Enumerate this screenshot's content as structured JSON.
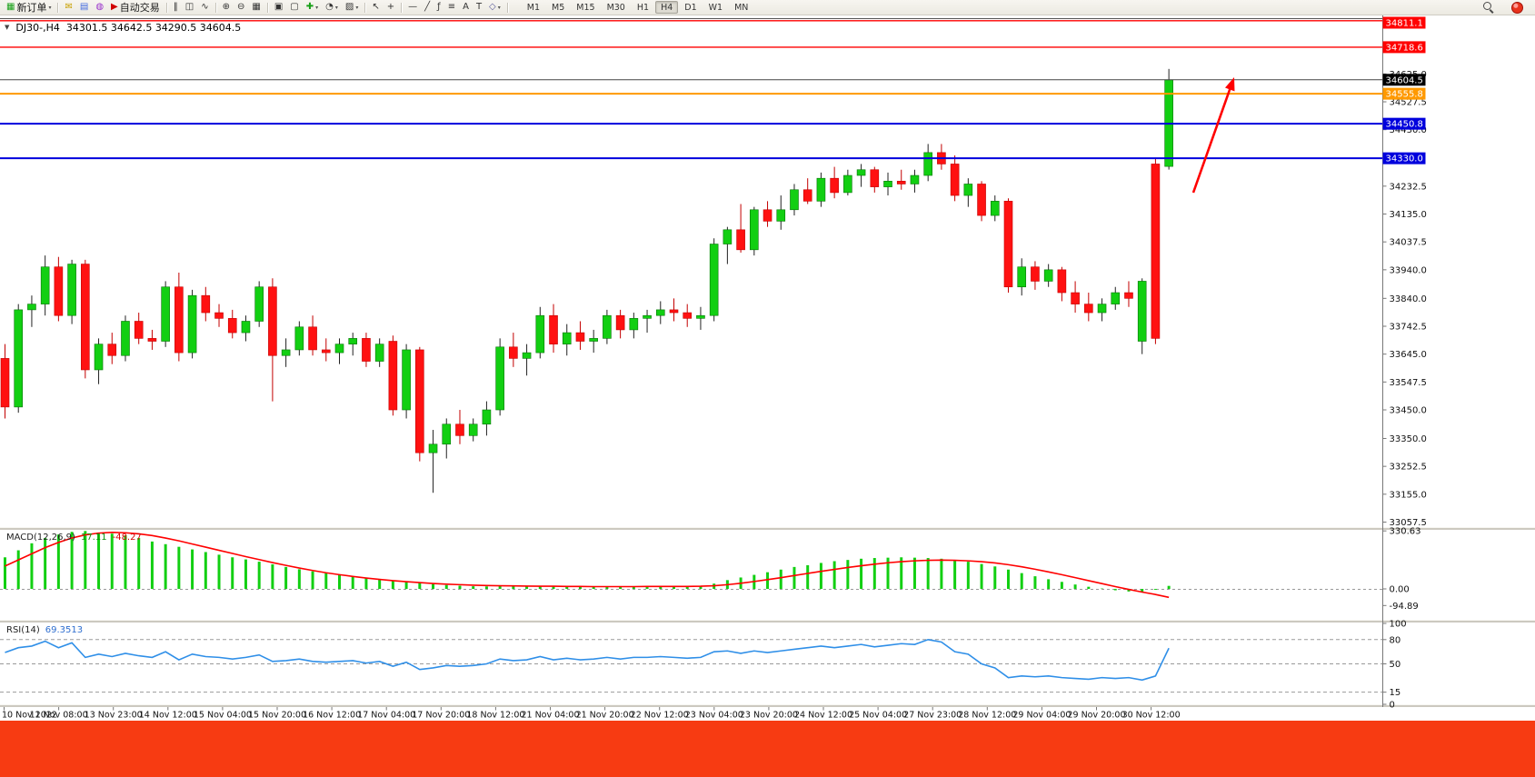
{
  "window": {
    "app": "MetaTrader terminal"
  },
  "toolbar": {
    "items": [
      {
        "type": "btn",
        "name": "new-order-button",
        "icon": "chart-plus-icon",
        "glyph": "▦",
        "color": "#18a018",
        "label": "新订单",
        "caret": true
      },
      {
        "type": "sep"
      },
      {
        "type": "btn",
        "name": "mql-editor-button",
        "icon": "envelope-icon",
        "glyph": "✉",
        "color": "#c8a000"
      },
      {
        "type": "btn",
        "name": "market-watch-button",
        "icon": "list-panel-icon",
        "glyph": "▤",
        "color": "#4169e1"
      },
      {
        "type": "btn",
        "name": "terminal-button",
        "icon": "terminal-icon",
        "glyph": "◍",
        "color": "#9932cc"
      },
      {
        "type": "btn",
        "name": "autotrading-button",
        "icon": "play-icon",
        "glyph": "▶",
        "color": "#d00000",
        "label": "自动交易"
      },
      {
        "type": "sep"
      },
      {
        "type": "btn",
        "name": "bars-mode-button",
        "icon": "bars-chart-icon",
        "glyph": "‖",
        "color": "#333333"
      },
      {
        "type": "btn",
        "name": "candles-mode-button",
        "icon": "candlestick-icon",
        "glyph": "◫",
        "color": "#333333"
      },
      {
        "type": "btn",
        "name": "line-mode-button",
        "icon": "line-chart-icon",
        "glyph": "∿",
        "color": "#333333"
      },
      {
        "type": "sep"
      },
      {
        "type": "btn",
        "name": "zoom-in-button",
        "icon": "zoom-in-icon",
        "glyph": "⊕",
        "color": "#333333"
      },
      {
        "type": "btn",
        "name": "zoom-out-button",
        "icon": "zoom-out-icon",
        "glyph": "⊖",
        "color": "#333333"
      },
      {
        "type": "btn",
        "name": "tile-windows-button",
        "icon": "tile-windows-icon",
        "glyph": "▦",
        "color": "#333333"
      },
      {
        "type": "sep"
      },
      {
        "type": "btn",
        "name": "auto-arrange-button",
        "icon": "arrange-icon",
        "glyph": "▣",
        "color": "#333333"
      },
      {
        "type": "btn",
        "name": "cascade-button",
        "icon": "cascade-icon",
        "glyph": "▢",
        "color": "#333333"
      },
      {
        "type": "btn",
        "name": "indicators-button",
        "icon": "plus-icon",
        "glyph": "✚",
        "color": "#18a018",
        "caret": true
      },
      {
        "type": "btn",
        "name": "periods-button",
        "icon": "clock-icon",
        "glyph": "◔",
        "color": "#333333",
        "caret": true
      },
      {
        "type": "btn",
        "name": "templates-button",
        "icon": "template-icon",
        "glyph": "▨",
        "color": "#333333",
        "caret": true
      },
      {
        "type": "sep"
      },
      {
        "type": "btn",
        "name": "cursor-button",
        "icon": "cursor-arrow-icon",
        "glyph": "↖",
        "color": "#333333"
      },
      {
        "type": "btn",
        "name": "crosshair-button",
        "icon": "crosshair-icon",
        "glyph": "+",
        "color": "#333333"
      },
      {
        "type": "sep"
      },
      {
        "type": "btn",
        "name": "horizontal-line-button",
        "icon": "hline-icon",
        "glyph": "—",
        "color": "#333333"
      },
      {
        "type": "btn",
        "name": "trendline-button",
        "icon": "trendline-icon",
        "glyph": "╱",
        "color": "#333333"
      },
      {
        "type": "btn",
        "name": "fibonacci-button",
        "icon": "fibonacci-icon",
        "glyph": "ƒ",
        "color": "#333333"
      },
      {
        "type": "btn",
        "name": "channel-button",
        "icon": "channel-icon",
        "glyph": "≡",
        "color": "#333333"
      },
      {
        "type": "btn",
        "name": "text-button",
        "icon": "text-a-icon",
        "glyph": "A",
        "color": "#333333"
      },
      {
        "type": "btn",
        "name": "label-button",
        "icon": "label-t-icon",
        "glyph": "T",
        "color": "#333333"
      },
      {
        "type": "btn",
        "name": "arrows-button",
        "icon": "shapes-icon",
        "glyph": "◇",
        "color": "#5a5a9a",
        "caret": true
      },
      {
        "type": "sep"
      }
    ],
    "timeframes": {
      "items": [
        "M1",
        "M5",
        "M15",
        "M30",
        "H1",
        "H4",
        "D1",
        "W1",
        "MN"
      ],
      "active": "H4"
    }
  },
  "chart": {
    "title_symbol": "DJ30-,H4",
    "title_ohlc": "34301.5 34642.5 34290.5 34604.5"
  },
  "chart_data": {
    "type": "candlestick",
    "symbol": "DJ30-",
    "period": "H4",
    "ylim": [
      33040,
      34820
    ],
    "candles": [
      [
        33630,
        33680,
        33420,
        33460
      ],
      [
        33460,
        33820,
        33440,
        33800
      ],
      [
        33800,
        33850,
        33740,
        33820
      ],
      [
        33820,
        33990,
        33780,
        33950
      ],
      [
        33950,
        33985,
        33760,
        33780
      ],
      [
        33780,
        33975,
        33750,
        33960
      ],
      [
        33960,
        33975,
        33560,
        33590
      ],
      [
        33590,
        33700,
        33540,
        33680
      ],
      [
        33680,
        33720,
        33610,
        33640
      ],
      [
        33640,
        33780,
        33620,
        33760
      ],
      [
        33760,
        33790,
        33680,
        33700
      ],
      [
        33700,
        33730,
        33660,
        33690
      ],
      [
        33690,
        33900,
        33670,
        33880
      ],
      [
        33880,
        33930,
        33620,
        33650
      ],
      [
        33650,
        33870,
        33630,
        33850
      ],
      [
        33850,
        33880,
        33760,
        33790
      ],
      [
        33790,
        33820,
        33740,
        33770
      ],
      [
        33770,
        33800,
        33700,
        33720
      ],
      [
        33720,
        33780,
        33690,
        33760
      ],
      [
        33760,
        33900,
        33740,
        33880
      ],
      [
        33880,
        33910,
        33480,
        33640
      ],
      [
        33640,
        33700,
        33600,
        33660
      ],
      [
        33660,
        33760,
        33640,
        33740
      ],
      [
        33740,
        33780,
        33640,
        33660
      ],
      [
        33660,
        33700,
        33620,
        33650
      ],
      [
        33650,
        33700,
        33610,
        33680
      ],
      [
        33680,
        33720,
        33640,
        33700
      ],
      [
        33700,
        33720,
        33600,
        33620
      ],
      [
        33620,
        33700,
        33600,
        33680
      ],
      [
        33690,
        33710,
        33430,
        33450
      ],
      [
        33450,
        33680,
        33420,
        33660
      ],
      [
        33660,
        33670,
        33270,
        33300
      ],
      [
        33300,
        33380,
        33160,
        33330
      ],
      [
        33330,
        33420,
        33280,
        33400
      ],
      [
        33400,
        33450,
        33330,
        33360
      ],
      [
        33360,
        33420,
        33340,
        33400
      ],
      [
        33400,
        33480,
        33360,
        33450
      ],
      [
        33450,
        33700,
        33430,
        33670
      ],
      [
        33670,
        33720,
        33600,
        33630
      ],
      [
        33630,
        33680,
        33570,
        33650
      ],
      [
        33650,
        33810,
        33630,
        33780
      ],
      [
        33780,
        33820,
        33650,
        33680
      ],
      [
        33680,
        33750,
        33640,
        33720
      ],
      [
        33720,
        33760,
        33660,
        33690
      ],
      [
        33690,
        33730,
        33650,
        33700
      ],
      [
        33700,
        33800,
        33680,
        33780
      ],
      [
        33780,
        33800,
        33700,
        33730
      ],
      [
        33730,
        33790,
        33700,
        33770
      ],
      [
        33770,
        33800,
        33720,
        33780
      ],
      [
        33780,
        33830,
        33750,
        33800
      ],
      [
        33800,
        33840,
        33760,
        33790
      ],
      [
        33790,
        33820,
        33740,
        33770
      ],
      [
        33770,
        33810,
        33730,
        33780
      ],
      [
        33780,
        34050,
        33760,
        34030
      ],
      [
        34030,
        34090,
        33960,
        34080
      ],
      [
        34080,
        34170,
        34000,
        34010
      ],
      [
        34010,
        34160,
        33990,
        34150
      ],
      [
        34150,
        34180,
        34090,
        34110
      ],
      [
        34110,
        34200,
        34080,
        34150
      ],
      [
        34150,
        34240,
        34130,
        34220
      ],
      [
        34220,
        34260,
        34170,
        34180
      ],
      [
        34180,
        34280,
        34160,
        34260
      ],
      [
        34260,
        34300,
        34190,
        34210
      ],
      [
        34210,
        34290,
        34200,
        34270
      ],
      [
        34270,
        34310,
        34230,
        34290
      ],
      [
        34290,
        34300,
        34210,
        34230
      ],
      [
        34230,
        34280,
        34200,
        34250
      ],
      [
        34250,
        34290,
        34220,
        34240
      ],
      [
        34240,
        34290,
        34210,
        34270
      ],
      [
        34270,
        34380,
        34250,
        34350
      ],
      [
        34350,
        34380,
        34290,
        34310
      ],
      [
        34310,
        34340,
        34180,
        34200
      ],
      [
        34200,
        34260,
        34160,
        34240
      ],
      [
        34240,
        34250,
        34110,
        34130
      ],
      [
        34130,
        34200,
        34110,
        34180
      ],
      [
        34180,
        34190,
        33860,
        33880
      ],
      [
        33880,
        33980,
        33850,
        33950
      ],
      [
        33950,
        33970,
        33870,
        33900
      ],
      [
        33900,
        33960,
        33880,
        33940
      ],
      [
        33940,
        33950,
        33830,
        33860
      ],
      [
        33860,
        33900,
        33790,
        33820
      ],
      [
        33820,
        33860,
        33760,
        33790
      ],
      [
        33790,
        33840,
        33760,
        33820
      ],
      [
        33820,
        33880,
        33800,
        33860
      ],
      [
        33860,
        33900,
        33810,
        33840
      ],
      [
        33690,
        33910,
        33645,
        33900
      ],
      [
        34310,
        34330,
        33680,
        33700
      ],
      [
        34301.5,
        34642.5,
        34290.5,
        34604.5
      ]
    ],
    "hlines": [
      {
        "label": "34811.1",
        "value": 34811.1,
        "color": "#ff0000",
        "width": 1.4
      },
      {
        "label": "34718.6",
        "value": 34718.6,
        "color": "#ff0000",
        "width": 1.4
      },
      {
        "label": "34555.8",
        "value": 34555.8,
        "color": "#ff9900",
        "width": 2
      },
      {
        "label": "34450.8",
        "value": 34450.8,
        "color": "#0000dd",
        "width": 2
      },
      {
        "label": "34330.0",
        "value": 34330.0,
        "color": "#0000dd",
        "width": 2
      }
    ],
    "current_price": {
      "label": "34604.5",
      "value": 34604.5,
      "box": "#000000",
      "line": "#454545"
    },
    "price_scale": [
      "34625.0",
      "34527.5",
      "34430.0",
      "34232.5",
      "34135.0",
      "34037.5",
      "33940.0",
      "33840.0",
      "33742.5",
      "33645.0",
      "33547.5",
      "33450.0",
      "33350.0",
      "33252.5",
      "33155.0",
      "33057.5"
    ],
    "macd": {
      "label": "MACD(12,26,9)",
      "main_value": "17.11",
      "signal_value": "-48.27",
      "scale": [
        {
          "label": "330.63",
          "value": 330.63
        },
        {
          "label": "0.00",
          "value": 0
        },
        {
          "label": "-94.89",
          "value": -94.89
        }
      ],
      "histogram": [
        180,
        220,
        260,
        290,
        310,
        325,
        330,
        320,
        315,
        305,
        290,
        270,
        255,
        240,
        225,
        210,
        195,
        180,
        168,
        155,
        140,
        125,
        112,
        100,
        90,
        80,
        70,
        62,
        55,
        48,
        42,
        35,
        28,
        22,
        18,
        15,
        14,
        16,
        15,
        13,
        14,
        13,
        12,
        11,
        12,
        14,
        13,
        14,
        15,
        16,
        15,
        14,
        16,
        30,
        50,
        65,
        80,
        95,
        110,
        125,
        135,
        148,
        158,
        165,
        172,
        176,
        178,
        180,
        178,
        176,
        172,
        165,
        155,
        142,
        128,
        110,
        90,
        72,
        55,
        40,
        25,
        12,
        2,
        -8,
        -15,
        -20,
        -5,
        17.11
      ],
      "signal": [
        130,
        165,
        200,
        235,
        265,
        290,
        308,
        318,
        322,
        320,
        314,
        304,
        290,
        274,
        256,
        238,
        220,
        202,
        184,
        167,
        150,
        134,
        119,
        105,
        92,
        81,
        71,
        62,
        54,
        47,
        41,
        36,
        31,
        27,
        24,
        21,
        19,
        18,
        17,
        16,
        15,
        15,
        14,
        14,
        13,
        13,
        13,
        13,
        14,
        14,
        14,
        14,
        15,
        18,
        24,
        32,
        42,
        53,
        64,
        76,
        88,
        100,
        111,
        122,
        132,
        141,
        149,
        155,
        160,
        163,
        164,
        163,
        160,
        155,
        148,
        138,
        126,
        112,
        97,
        81,
        64,
        47,
        30,
        13,
        -3,
        -18,
        -32,
        -48.27
      ]
    },
    "rsi": {
      "label": "RSI(14)",
      "value": "69.3513",
      "scale": [
        {
          "label": "100",
          "value": 100
        },
        {
          "label": "80",
          "value": 80
        },
        {
          "label": "50",
          "value": 50
        },
        {
          "label": "15",
          "value": 15
        },
        {
          "label": "0",
          "value": 0
        }
      ],
      "levels": [
        80,
        50,
        15
      ],
      "values": [
        64,
        70,
        72,
        78,
        70,
        76,
        58,
        62,
        59,
        63,
        60,
        58,
        65,
        55,
        62,
        59,
        58,
        56,
        58,
        61,
        53,
        54,
        56,
        53,
        52,
        53,
        54,
        51,
        53,
        47,
        52,
        43,
        45,
        48,
        47,
        48,
        50,
        56,
        54,
        55,
        59,
        55,
        57,
        55,
        56,
        58,
        56,
        58,
        58,
        59,
        58,
        57,
        58,
        65,
        66,
        63,
        66,
        64,
        66,
        68,
        70,
        72,
        70,
        72,
        74,
        71,
        73,
        75,
        74,
        80,
        77,
        65,
        62,
        50,
        45,
        33,
        35,
        34,
        35,
        33,
        32,
        31,
        33,
        32,
        33,
        30,
        35,
        69.35
      ]
    },
    "time_labels": [
      "10 Nov 2022",
      "11 Nov 08:00",
      "13 Nov 23:00",
      "14 Nov 12:00",
      "15 Nov 04:00",
      "15 Nov 20:00",
      "16 Nov 12:00",
      "17 Nov 04:00",
      "17 Nov 20:00",
      "18 Nov 12:00",
      "21 Nov 04:00",
      "21 Nov 20:00",
      "22 Nov 12:00",
      "23 Nov 04:00",
      "23 Nov 20:00",
      "24 Nov 12:00",
      "25 Nov 04:00",
      "27 Nov 23:00",
      "28 Nov 12:00",
      "29 Nov 04:00",
      "29 Nov 20:00",
      "30 Nov 12:00"
    ],
    "annotations": [
      {
        "type": "arrow",
        "direction": "up-right",
        "color": "#ff0000"
      }
    ]
  },
  "colors": {
    "up": "#12cf12",
    "up_border": "#077407",
    "down": "#ff1111",
    "down_border": "#c30000",
    "wick_up": "#222222",
    "wick_down": "#c30000",
    "macd_hist": "#12cf12",
    "macd_signal": "#ff0000",
    "rsi_line": "#2f8fe8",
    "arrow": "#ff0000",
    "banner": "#f73b12"
  }
}
